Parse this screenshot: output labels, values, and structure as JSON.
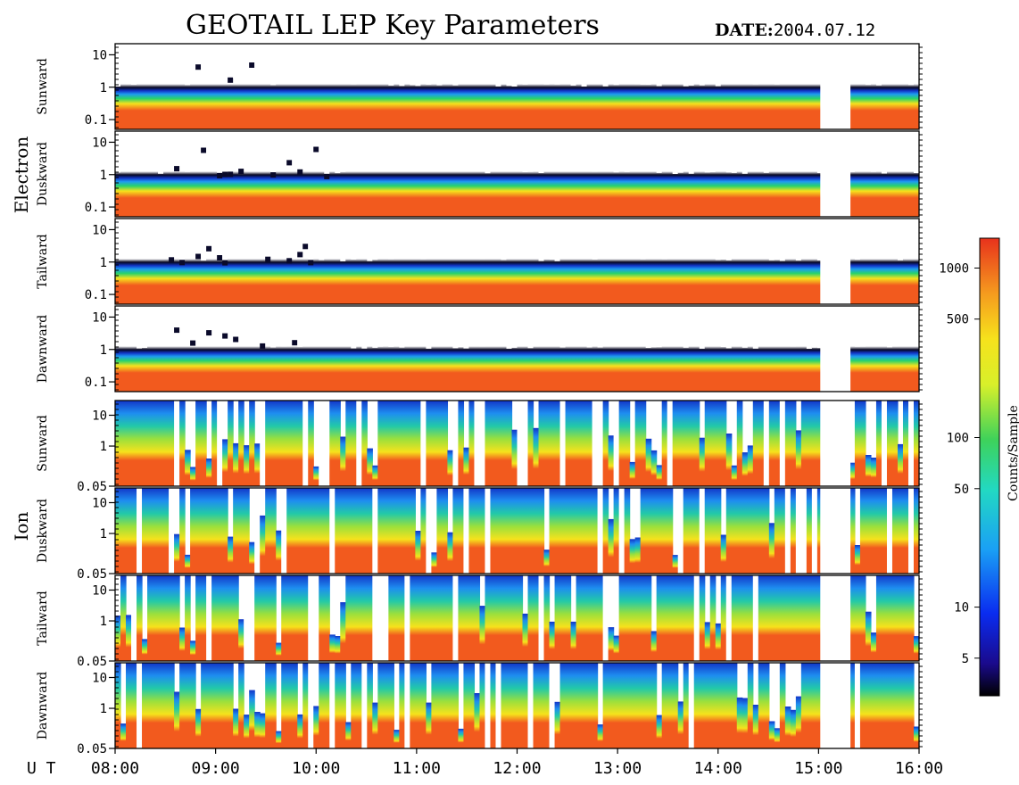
{
  "header": {
    "title": "GEOTAIL LEP Key Parameters",
    "date_label": "DATE:",
    "date_value": "2004.07.12"
  },
  "groups": [
    {
      "name": "Electron"
    },
    {
      "name": "Ion"
    }
  ],
  "xaxis": {
    "label": "U T",
    "ticks": [
      "08:00",
      "09:00",
      "10:00",
      "11:00",
      "12:00",
      "13:00",
      "14:00",
      "15:00",
      "16:00"
    ]
  },
  "colorbar": {
    "label": "Counts/Sample",
    "ticks": [
      "1000",
      "500",
      "100",
      "50",
      "10",
      "5"
    ],
    "tick_values": [
      1000,
      500,
      100,
      50,
      10,
      5
    ],
    "range": [
      3,
      1500
    ],
    "scale": "log"
  },
  "chart_data": [
    {
      "type": "heatmap",
      "group": "Electron",
      "direction": "Sunward",
      "yticks": [
        "10",
        "1",
        "0.1"
      ],
      "ytick_values": [
        10,
        1,
        0.1
      ],
      "ylim": [
        0.05,
        22
      ],
      "yscale": "log",
      "xrange": [
        "08:00",
        "16:00"
      ],
      "data_gaps": [
        [
          "15:01",
          "15:19"
        ]
      ]
    },
    {
      "type": "heatmap",
      "group": "Electron",
      "direction": "Duskward",
      "yticks": [
        "10",
        "1",
        "0.1"
      ],
      "ytick_values": [
        10,
        1,
        0.1
      ],
      "ylim": [
        0.05,
        22
      ],
      "yscale": "log",
      "xrange": [
        "08:00",
        "16:00"
      ],
      "data_gaps": [
        [
          "15:01",
          "15:19"
        ]
      ]
    },
    {
      "type": "heatmap",
      "group": "Electron",
      "direction": "Tailward",
      "yticks": [
        "10",
        "1",
        "0.1"
      ],
      "ytick_values": [
        10,
        1,
        0.1
      ],
      "ylim": [
        0.05,
        22
      ],
      "yscale": "log",
      "xrange": [
        "08:00",
        "16:00"
      ],
      "data_gaps": [
        [
          "15:01",
          "15:19"
        ]
      ]
    },
    {
      "type": "heatmap",
      "group": "Electron",
      "direction": "Dawnward",
      "yticks": [
        "10",
        "1",
        "0.1"
      ],
      "ytick_values": [
        10,
        1,
        0.1
      ],
      "ylim": [
        0.05,
        22
      ],
      "yscale": "log",
      "xrange": [
        "08:00",
        "16:00"
      ],
      "data_gaps": [
        [
          "15:01",
          "15:19"
        ]
      ]
    },
    {
      "type": "heatmap",
      "group": "Ion",
      "direction": "Sunward",
      "yticks": [
        "10",
        "1",
        "0.05"
      ],
      "ytick_values": [
        10,
        1,
        0.05
      ],
      "ylim": [
        0.05,
        30
      ],
      "yscale": "log",
      "xrange": [
        "08:00",
        "16:00"
      ],
      "data_gaps": [
        [
          "15:01",
          "15:19"
        ]
      ]
    },
    {
      "type": "heatmap",
      "group": "Ion",
      "direction": "Duskward",
      "yticks": [
        "10",
        "1",
        "0.05"
      ],
      "ytick_values": [
        10,
        1,
        0.05
      ],
      "ylim": [
        0.05,
        30
      ],
      "yscale": "log",
      "xrange": [
        "08:00",
        "16:00"
      ],
      "data_gaps": [
        [
          "15:01",
          "15:19"
        ]
      ]
    },
    {
      "type": "heatmap",
      "group": "Ion",
      "direction": "Tailward",
      "yticks": [
        "10",
        "1",
        "0.05"
      ],
      "ytick_values": [
        10,
        1,
        0.05
      ],
      "ylim": [
        0.05,
        30
      ],
      "yscale": "log",
      "xrange": [
        "08:00",
        "16:00"
      ],
      "data_gaps": [
        [
          "15:01",
          "15:19"
        ]
      ]
    },
    {
      "type": "heatmap",
      "group": "Ion",
      "direction": "Dawnward",
      "yticks": [
        "10",
        "1",
        "0.05"
      ],
      "ytick_values": [
        10,
        1,
        0.05
      ],
      "ylim": [
        0.05,
        30
      ],
      "yscale": "log",
      "xrange": [
        "08:00",
        "16:00"
      ],
      "data_gaps": [
        [
          "15:01",
          "15:19"
        ]
      ]
    }
  ]
}
